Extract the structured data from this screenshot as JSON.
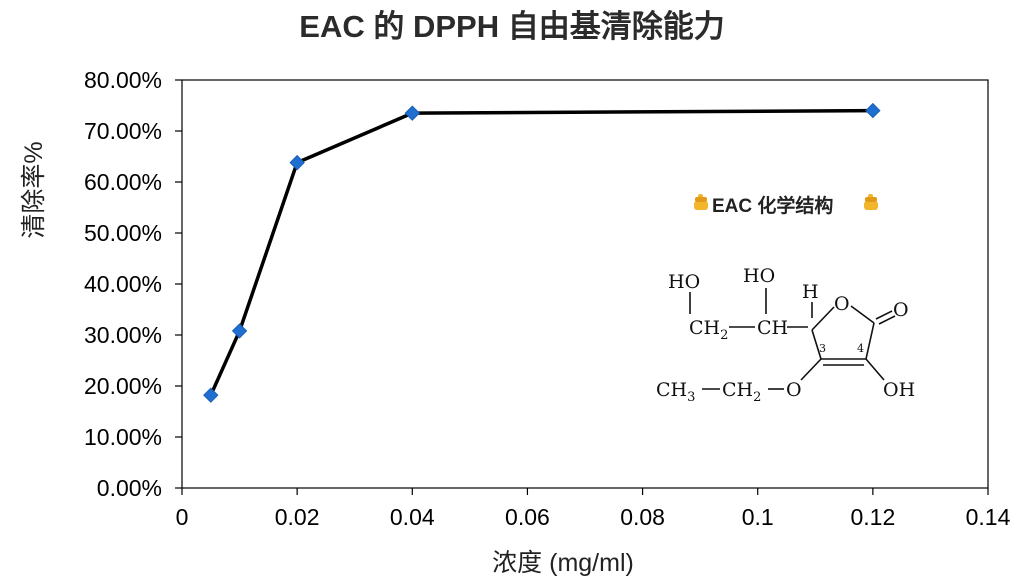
{
  "chart_data": {
    "type": "scatter",
    "title": "EAC 的 DPPH 自由基清除能力",
    "xlabel": "浓度 (mg/ml)",
    "ylabel": "清除率%",
    "xlim": [
      0,
      0.14
    ],
    "ylim": [
      0,
      0.8
    ],
    "x_ticks": [
      0,
      0.02,
      0.04,
      0.06,
      0.08,
      0.1,
      0.12,
      0.14
    ],
    "x_tick_labels": [
      "0",
      "0.02",
      "0.04",
      "0.06",
      "0.08",
      "0.1",
      "0.12",
      "0.14"
    ],
    "y_ticks": [
      0,
      0.1,
      0.2,
      0.3,
      0.4,
      0.5,
      0.6,
      0.7,
      0.8
    ],
    "y_tick_labels": [
      "0.00%",
      "10.00%",
      "20.00%",
      "30.00%",
      "40.00%",
      "50.00%",
      "60.00%",
      "70.00%",
      "80.00%"
    ],
    "series": [
      {
        "x": [
          0.005,
          0.01,
          0.02,
          0.04,
          0.12
        ],
        "y": [
          0.182,
          0.308,
          0.638,
          0.735,
          0.74
        ]
      }
    ],
    "grid": false,
    "marker": "diamond",
    "line_color": "#000000",
    "marker_color": "#1f6fd1",
    "annotation": {
      "icon": "pointing-down-hand-icon",
      "label": "EAC 化学结构"
    },
    "structure_labels": {
      "ho1": "HO",
      "ho2": "HO",
      "h": "H",
      "o_ring": "O",
      "o_carbonyl": "O",
      "ch2": "CH",
      "ch2_sub": "2",
      "ch": "CH",
      "c3": "3",
      "c4": "4",
      "ch3": "CH",
      "ch3_sub": "3",
      "ch2b": "CH",
      "ch2b_sub": "2",
      "o_ether": "O",
      "oh": "OH"
    }
  }
}
